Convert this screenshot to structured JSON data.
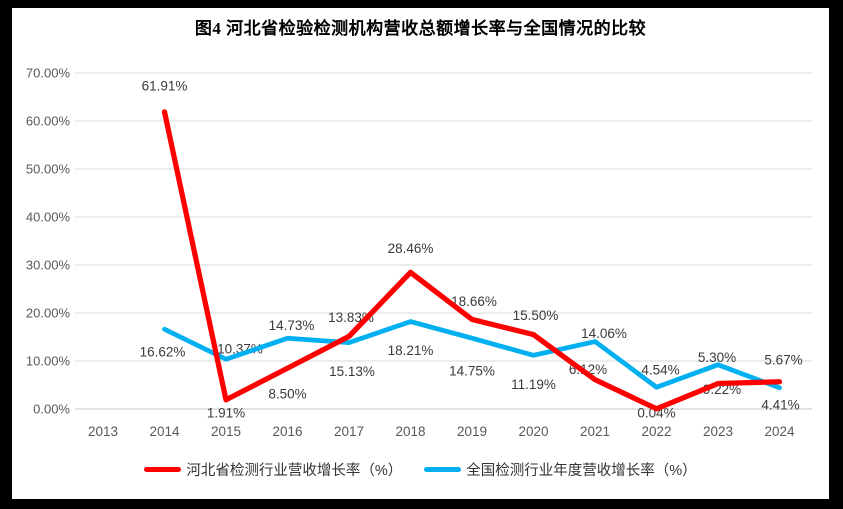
{
  "title": "图4 河北省检验检测机构营收总额增长率与全国情况的比较",
  "colors": {
    "hebei_red": "#FF0000",
    "national_blue": "#00B0F0",
    "gridline": "#D9D9D9",
    "axis_line": "#C6C6C6",
    "tick_text": "#595959",
    "data_label_text": "#3A3A3A",
    "frame": "#000000",
    "background": "#FFFFFF"
  },
  "chart_data": {
    "type": "line",
    "categories": [
      "2013",
      "2014",
      "2015",
      "2016",
      "2017",
      "2018",
      "2019",
      "2020",
      "2021",
      "2022",
      "2023",
      "2024"
    ],
    "ylim": [
      0,
      70
    ],
    "ytick_values": [
      0,
      10,
      20,
      30,
      40,
      50,
      60,
      70
    ],
    "ytick_labels": [
      "0.00%",
      "10.00%",
      "20.00%",
      "30.00%",
      "40.00%",
      "50.00%",
      "60.00%",
      "70.00%"
    ],
    "grid": "horizontal",
    "legend_position": "bottom",
    "series": [
      {
        "name": "河北省检测行业营收增长率（%）",
        "color": "#FF0000",
        "stroke_width": 5.25,
        "values": [
          null,
          61.91,
          1.91,
          8.5,
          15.13,
          28.46,
          18.66,
          15.5,
          6.12,
          0.04,
          5.3,
          5.67
        ],
        "data_labels": [
          null,
          "61.91%",
          "1.91%",
          "8.50%",
          "15.13%",
          "28.46%",
          "18.66%",
          "15.50%",
          "6.12%",
          "0.04%",
          "5.30%",
          "5.67%"
        ],
        "label_offsets": [
          null,
          [
            0,
            -26
          ],
          [
            0,
            13
          ],
          [
            0,
            26
          ],
          [
            3,
            35
          ],
          [
            0,
            -24
          ],
          [
            2,
            -18
          ],
          [
            2,
            -19
          ],
          [
            -7,
            -10
          ],
          [
            0,
            4
          ],
          [
            -1,
            -26
          ],
          [
            4,
            -22
          ]
        ]
      },
      {
        "name": "全国检测行业年度营收增长率（%）",
        "color": "#00B0F0",
        "stroke_width": 4.75,
        "values": [
          null,
          16.62,
          10.37,
          14.73,
          13.83,
          18.21,
          14.75,
          11.19,
          14.06,
          4.54,
          9.22,
          4.41
        ],
        "data_labels": [
          null,
          "16.62%",
          "10.37%",
          "14.73%",
          "13.83%",
          "18.21%",
          "14.75%",
          "11.19%",
          "14.06%",
          "4.54%",
          "9.22%",
          "4.41%"
        ],
        "label_offsets": [
          null,
          [
            -2,
            23
          ],
          [
            14,
            -10
          ],
          [
            4,
            -13
          ],
          [
            2,
            -25
          ],
          [
            0,
            29
          ],
          [
            0,
            33
          ],
          [
            0,
            29
          ],
          [
            9,
            -8
          ],
          [
            4,
            -17
          ],
          [
            4,
            25
          ],
          [
            1,
            17
          ]
        ]
      }
    ]
  },
  "legend": {
    "items": [
      {
        "label": "河北省检测行业营收增长率（%）"
      },
      {
        "label": "全国检测行业年度营收增长率（%）"
      }
    ]
  }
}
